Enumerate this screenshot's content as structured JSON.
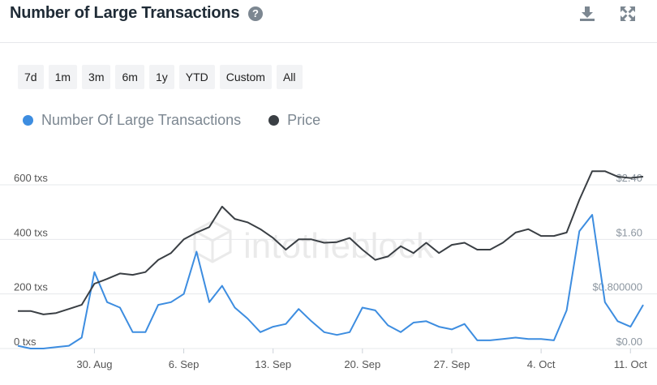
{
  "header": {
    "title": "Number of Large Transactions",
    "help_icon": "help-circle-icon",
    "download_icon": "download-icon",
    "expand_icon": "expand-icon"
  },
  "ranges": [
    "7d",
    "1m",
    "3m",
    "6m",
    "1y",
    "YTD",
    "Custom",
    "All"
  ],
  "colors": {
    "transactions": "#3d8de0",
    "price": "#3a3f44",
    "grid": "#e6e8eb"
  },
  "chart_data": {
    "type": "line",
    "title": "Number of Large Transactions",
    "x": [
      "Aug 24",
      "Aug 25",
      "Aug 26",
      "Aug 27",
      "Aug 28",
      "Aug 29",
      "Aug 30",
      "Aug 31",
      "Sep 1",
      "Sep 2",
      "Sep 3",
      "Sep 4",
      "Sep 5",
      "Sep 6",
      "Sep 7",
      "Sep 8",
      "Sep 9",
      "Sep 10",
      "Sep 11",
      "Sep 12",
      "Sep 13",
      "Sep 14",
      "Sep 15",
      "Sep 16",
      "Sep 17",
      "Sep 18",
      "Sep 19",
      "Sep 20",
      "Sep 21",
      "Sep 22",
      "Sep 23",
      "Sep 24",
      "Sep 25",
      "Sep 26",
      "Sep 27",
      "Sep 28",
      "Sep 29",
      "Sep 30",
      "Oct 1",
      "Oct 2",
      "Oct 3",
      "Oct 4",
      "Oct 5",
      "Oct 6",
      "Oct 7",
      "Oct 8",
      "Oct 9",
      "Oct 10",
      "Oct 11",
      "Oct 12"
    ],
    "x_tick_labels": [
      "30. Aug",
      "6. Sep",
      "13. Sep",
      "20. Sep",
      "27. Sep",
      "4. Oct",
      "11. Oct"
    ],
    "series": [
      {
        "name": "Number Of Large Transactions",
        "axis": "left",
        "values": [
          10,
          0,
          0,
          5,
          10,
          40,
          280,
          170,
          150,
          60,
          60,
          160,
          170,
          200,
          355,
          170,
          230,
          150,
          110,
          60,
          80,
          90,
          145,
          100,
          60,
          50,
          60,
          150,
          140,
          85,
          60,
          95,
          100,
          80,
          70,
          90,
          30,
          30,
          35,
          40,
          35,
          35,
          30,
          140,
          430,
          490,
          170,
          100,
          80,
          160
        ]
      },
      {
        "name": "Price",
        "axis": "right",
        "values": [
          0.55,
          0.55,
          0.5,
          0.52,
          0.58,
          0.64,
          0.95,
          1.02,
          1.1,
          1.08,
          1.12,
          1.3,
          1.4,
          1.6,
          1.7,
          1.78,
          2.08,
          1.9,
          1.85,
          1.75,
          1.62,
          1.45,
          1.6,
          1.6,
          1.55,
          1.56,
          1.62,
          1.45,
          1.3,
          1.35,
          1.5,
          1.4,
          1.55,
          1.4,
          1.52,
          1.55,
          1.45,
          1.45,
          1.55,
          1.7,
          1.75,
          1.65,
          1.65,
          1.7,
          2.18,
          2.6,
          2.6,
          2.52,
          2.5,
          2.52
        ]
      }
    ],
    "y_left": {
      "ticks": [
        "0 txs",
        "200 txs",
        "400 txs",
        "600 txs"
      ],
      "values": [
        0,
        200,
        400,
        600
      ],
      "ylim": [
        0,
        600
      ]
    },
    "y_right": {
      "ticks": [
        "$0.00",
        "$0.800000",
        "$1.60",
        "$2.40"
      ],
      "values": [
        0,
        0.8,
        1.6,
        2.4
      ],
      "ylim": [
        0,
        2.4
      ]
    },
    "grid": true,
    "legend_position": "top-left"
  }
}
